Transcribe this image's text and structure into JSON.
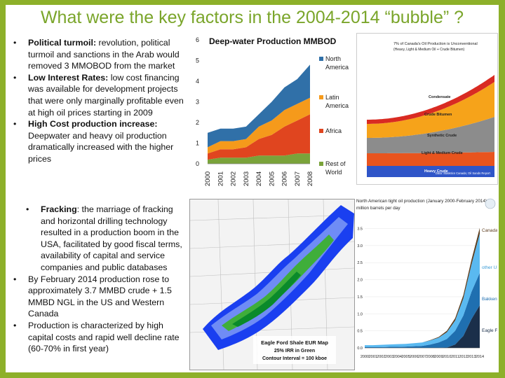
{
  "slide": {
    "title": "What were the key factors in the 2004-2014 “bubble” ?"
  },
  "factors": [
    {
      "heading": "Political turmoil:",
      "text": " revolution, political turmoil and sanctions in the Arab would removed 3 MMOBOD from the market"
    },
    {
      "heading": "Low Interest Rates:",
      "text": " low cost financing was available for development projects that were only marginally profitable even at high oil prices starting in 2009"
    },
    {
      "heading": "High Cost production increase:",
      "text": " Deepwater and heavy oil production dramatically increased with the higher prices"
    }
  ],
  "fracking": [
    {
      "heading": "Fracking",
      "text": ": the marriage of fracking and horizontal drilling technology resulted in a production boom in the USA, facilitated by good fiscal terms, availability of capital and service companies and public databases"
    },
    {
      "heading": "",
      "text": "By February 2014 production rose to approximately 3.7 MMBD crude + 1.5 MMBD NGL in the US and Western Canada"
    },
    {
      "heading": "",
      "text": "Production is characterized by high capital costs and rapid well decline rate (60-70% in first year)"
    }
  ],
  "chart_data": [
    {
      "type": "area",
      "stacked": true,
      "title": "Deep-water Production MMBOD",
      "x": [
        "2000",
        "2001",
        "2002",
        "2003",
        "2004",
        "2005",
        "2006",
        "2007",
        "2008"
      ],
      "ylim": [
        0,
        6
      ],
      "yticks": [
        "0",
        "1",
        "2",
        "3",
        "4",
        "5",
        "6"
      ],
      "series": [
        {
          "name": "Rest of World",
          "color": "#7aa33a",
          "values": [
            0.2,
            0.3,
            0.3,
            0.3,
            0.4,
            0.4,
            0.4,
            0.5,
            0.5
          ]
        },
        {
          "name": "Africa",
          "color": "#e0451f",
          "values": [
            0.3,
            0.4,
            0.4,
            0.5,
            0.8,
            1.0,
            1.4,
            1.6,
            1.9
          ]
        },
        {
          "name": "Latin America",
          "color": "#f59a1b",
          "values": [
            0.3,
            0.4,
            0.4,
            0.4,
            0.6,
            0.7,
            0.8,
            0.8,
            0.8
          ]
        },
        {
          "name": "North America",
          "color": "#3070a8",
          "values": [
            0.7,
            0.6,
            0.6,
            0.6,
            0.6,
            0.9,
            1.1,
            1.2,
            1.6
          ]
        }
      ],
      "legend_labels": [
        {
          "line1": "North",
          "line2": "America"
        },
        {
          "line1": "Latin",
          "line2": "America"
        },
        {
          "line1": "Africa",
          "line2": ""
        },
        {
          "line1": "Rest of",
          "line2": "World"
        }
      ]
    },
    {
      "type": "area",
      "stacked": true,
      "title": "7% of Canada's Oil Production is Unconventional",
      "subtitle": "(Heavy, Light & Medium Oil + Crude Bitumen)",
      "layers": [
        "Heavy Crude",
        "Light & Medium Crude",
        "Synthetic Crude",
        "Crude Bitumen",
        "Condensate"
      ],
      "colors": [
        "#2f55c8",
        "#e8541e",
        "#8c8c8c",
        "#f6a31a",
        "#d92b22"
      ],
      "source": "Data: Statistics Canada; Oil Sands Report"
    },
    {
      "type": "area",
      "stacked": true,
      "title": "North American tight oil production (January 2000-February 2014)",
      "ylabel": "million barrels per day",
      "x": [
        "2000",
        "2001",
        "2002",
        "2003",
        "2004",
        "2005",
        "2006",
        "2007",
        "2008",
        "2009",
        "2010",
        "2011",
        "2012",
        "2013",
        "2014"
      ],
      "yticks": [
        "0.0",
        "0.5",
        "1.0",
        "1.5",
        "2.0",
        "2.5",
        "3.0",
        "3.5"
      ],
      "series": [
        {
          "name": "Eagle Ford",
          "color": "#1b2f4a",
          "values": [
            0,
            0,
            0,
            0,
            0,
            0,
            0,
            0,
            0,
            0,
            0.01,
            0.1,
            0.35,
            0.85,
            1.25
          ]
        },
        {
          "name": "Bakken",
          "color": "#1f6fb0",
          "values": [
            0.02,
            0.02,
            0.02,
            0.03,
            0.03,
            0.04,
            0.05,
            0.06,
            0.1,
            0.16,
            0.25,
            0.4,
            0.6,
            0.8,
            0.95
          ]
        },
        {
          "name": "other US",
          "color": "#5ab9f0",
          "values": [
            0.06,
            0.06,
            0.07,
            0.07,
            0.08,
            0.08,
            0.09,
            0.1,
            0.12,
            0.14,
            0.2,
            0.3,
            0.5,
            0.8,
            1.15
          ]
        },
        {
          "name": "Canada",
          "color": "#5c3d1e",
          "values": [
            0,
            0,
            0,
            0,
            0,
            0,
            0,
            0,
            0.01,
            0.02,
            0.04,
            0.07,
            0.1,
            0.14,
            0.17
          ]
        }
      ]
    }
  ],
  "map": {
    "title": "Eagle Ford Shale EUR Map",
    "subtitle": "25% IRR in Green",
    "note": "Contour Interval = 100 kboe"
  }
}
